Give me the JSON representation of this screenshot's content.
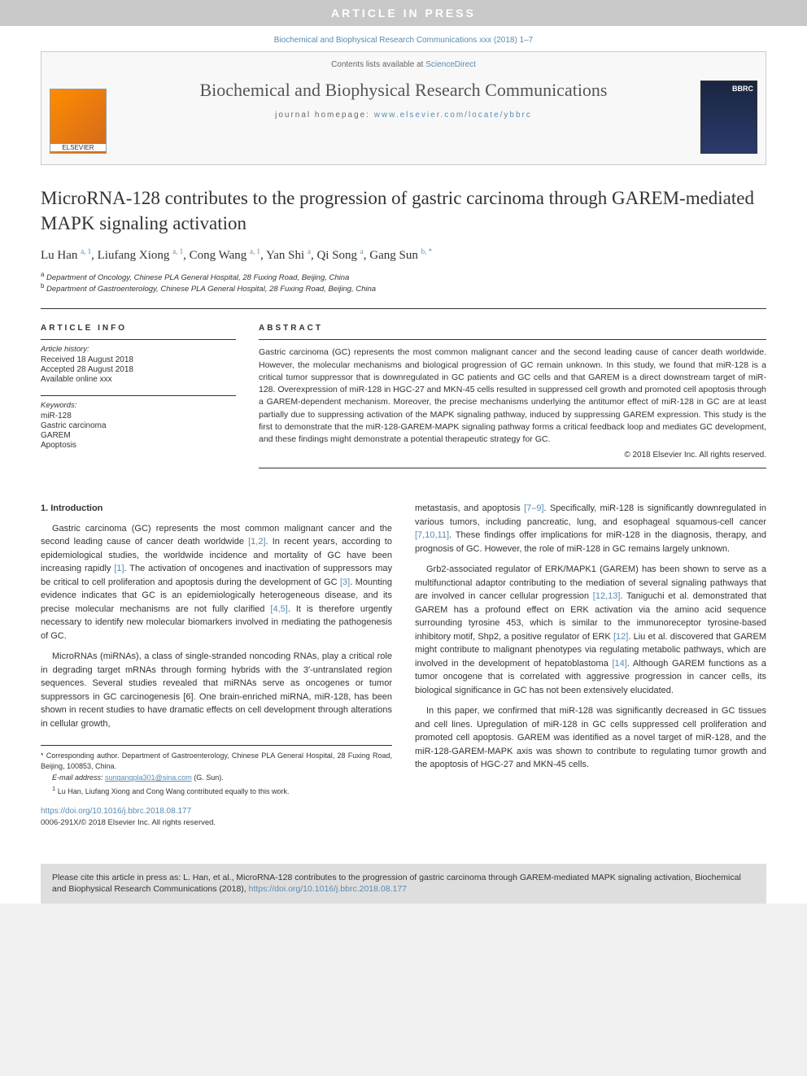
{
  "banner": "ARTICLE IN PRESS",
  "citation_line": "Biochemical and Biophysical Research Communications xxx (2018) 1–7",
  "header": {
    "sd_prefix": "Contents lists available at ",
    "sd_link": "ScienceDirect",
    "journal": "Biochemical and Biophysical Research Communications",
    "homepage_prefix": "journal homepage: ",
    "homepage_url": "www.elsevier.com/locate/ybbrc"
  },
  "title": "MicroRNA-128 contributes to the progression of gastric carcinoma through GAREM-mediated MAPK signaling activation",
  "authors_html": "Lu Han <sup>a, 1</sup>, Liufang Xiong <sup>a, 1</sup>, Cong Wang <sup>a, 1</sup>, Yan Shi <sup>a</sup>, Qi Song <sup>a</sup>, Gang Sun <sup>b, *</sup>",
  "affiliations": {
    "a": "Department of Oncology, Chinese PLA General Hospital, 28 Fuxing Road, Beijing, China",
    "b": "Department of Gastroenterology, Chinese PLA General Hospital, 28 Fuxing Road, Beijing, China"
  },
  "info": {
    "head": "ARTICLE INFO",
    "history_head": "Article history:",
    "received": "Received 18 August 2018",
    "accepted": "Accepted 28 August 2018",
    "online": "Available online xxx",
    "keywords_head": "Keywords:",
    "keywords": [
      "miR-128",
      "Gastric carcinoma",
      "GAREM",
      "Apoptosis"
    ]
  },
  "abstract": {
    "head": "ABSTRACT",
    "text": "Gastric carcinoma (GC) represents the most common malignant cancer and the second leading cause of cancer death worldwide. However, the molecular mechanisms and biological progression of GC remain unknown. In this study, we found that miR-128 is a critical tumor suppressor that is downregulated in GC patients and GC cells and that GAREM is a direct downstream target of miR-128. Overexpression of miR-128 in HGC-27 and MKN-45 cells resulted in suppressed cell growth and promoted cell apoptosis through a GAREM-dependent mechanism. Moreover, the precise mechanisms underlying the antitumor effect of miR-128 in GC are at least partially due to suppressing activation of the MAPK signaling pathway, induced by suppressing GAREM expression. This study is the first to demonstrate that the miR-128-GAREM-MAPK signaling pathway forms a critical feedback loop and mediates GC development, and these findings might demonstrate a potential therapeutic strategy for GC.",
    "copyright": "© 2018 Elsevier Inc. All rights reserved."
  },
  "body": {
    "sec1": "1. Introduction",
    "col1_p1": "Gastric carcinoma (GC) represents the most common malignant cancer and the second leading cause of cancer death worldwide [1,2]. In recent years, according to epidemiological studies, the worldwide incidence and mortality of GC have been increasing rapidly [1]. The activation of oncogenes and inactivation of suppressors may be critical to cell proliferation and apoptosis during the development of GC [3]. Mounting evidence indicates that GC is an epidemiologically heterogeneous disease, and its precise molecular mechanisms are not fully clarified [4,5]. It is therefore urgently necessary to identify new molecular biomarkers involved in mediating the pathogenesis of GC.",
    "col1_p2": "MicroRNAs (miRNAs), a class of single-stranded noncoding RNAs, play a critical role in degrading target mRNAs through forming hybrids with the 3′-untranslated region sequences. Several studies revealed that miRNAs serve as oncogenes or tumor suppressors in GC carcinogenesis [6]. One brain-enriched miRNA, miR-128, has been shown in recent studies to have dramatic effects on cell development through alterations in cellular growth,",
    "col2_p1": "metastasis, and apoptosis [7–9]. Specifically, miR-128 is significantly downregulated in various tumors, including pancreatic, lung, and esophageal squamous-cell cancer [7,10,11]. These findings offer implications for miR-128 in the diagnosis, therapy, and prognosis of GC. However, the role of miR-128 in GC remains largely unknown.",
    "col2_p2": "Grb2-associated regulator of ERK/MAPK1 (GAREM) has been shown to serve as a multifunctional adaptor contributing to the mediation of several signaling pathways that are involved in cancer cellular progression [12,13]. Taniguchi et al. demonstrated that GAREM has a profound effect on ERK activation via the amino acid sequence surrounding tyrosine 453, which is similar to the immunoreceptor tyrosine-based inhibitory motif, Shp2, a positive regulator of ERK [12]. Liu et al. discovered that GAREM might contribute to malignant phenotypes via regulating metabolic pathways, which are involved in the development of hepatoblastoma [14]. Although GAREM functions as a tumor oncogene that is correlated with aggressive progression in cancer cells, its biological significance in GC has not been extensively elucidated.",
    "col2_p3": "In this paper, we confirmed that miR-128 was significantly decreased in GC tissues and cell lines. Upregulation of miR-128 in GC cells suppressed cell proliferation and promoted cell apoptosis. GAREM was identified as a novel target of miR-128, and the miR-128-GAREM-MAPK axis was shown to contribute to regulating tumor growth and the apoptosis of HGC-27 and MKN-45 cells."
  },
  "footnotes": {
    "corr": "* Corresponding author. Department of Gastroenterology, Chinese PLA General Hospital, 28 Fuxing Road, Beijing, 100853, China.",
    "email_label": "E-mail address: ",
    "email": "sungangpla301@sina.com",
    "email_suffix": " (G. Sun).",
    "equal": "Lu Han, Liufang Xiong and Cong Wang contributed equally to this work."
  },
  "doi": {
    "url": "https://doi.org/10.1016/j.bbrc.2018.08.177",
    "issn": "0006-291X/© 2018 Elsevier Inc. All rights reserved."
  },
  "cite_box": "Please cite this article in press as: L. Han, et al., MicroRNA-128 contributes to the progression of gastric carcinoma through GAREM-mediated MAPK signaling activation, Biochemical and Biophysical Research Communications (2018), https://doi.org/10.1016/j.bbrc.2018.08.177",
  "colors": {
    "banner_bg": "#c8c8c8",
    "banner_fg": "#ffffff",
    "link": "#5a8bb0",
    "text": "#333333",
    "cite_bg": "#dedede"
  }
}
